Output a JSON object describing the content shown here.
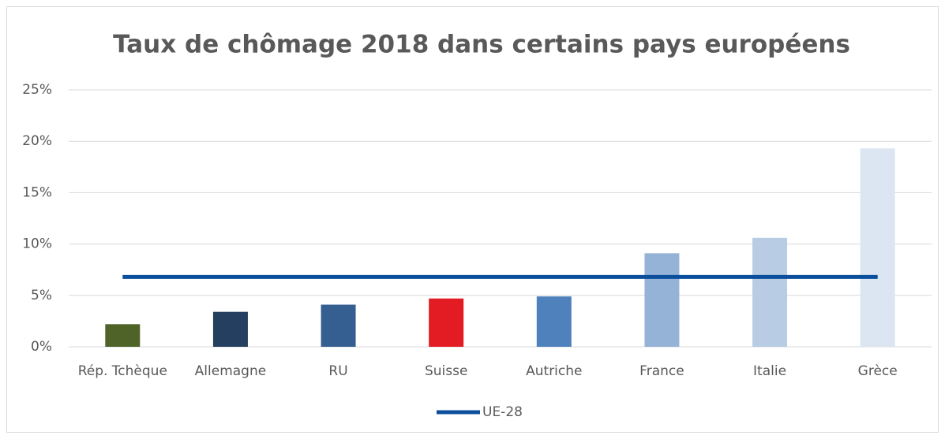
{
  "chart_data": {
    "type": "bar",
    "title": "Taux de chômage 2018 dans certains pays européens",
    "categories": [
      "Rép. Tchèque",
      "Allemagne",
      "RU",
      "Suisse",
      "Autriche",
      "France",
      "Italie",
      "Grèce"
    ],
    "values": [
      2.2,
      3.4,
      4.1,
      4.7,
      4.9,
      9.1,
      10.6,
      19.3
    ],
    "colors": [
      "#4f6228",
      "#243f60",
      "#365f91",
      "#e31b23",
      "#4f81bd",
      "#95b3d7",
      "#b8cce4",
      "#dce6f2"
    ],
    "series": [
      {
        "name": "UE-28",
        "color": "#0b4f9c",
        "type": "line",
        "values": [
          6.8,
          6.8,
          6.8,
          6.8,
          6.8,
          6.8,
          6.8,
          6.8
        ]
      }
    ],
    "ylim": [
      0,
      25
    ],
    "yticks": [
      {
        "value": 0,
        "label": "0%"
      },
      {
        "value": 5,
        "label": "5%"
      },
      {
        "value": 10,
        "label": "10%"
      },
      {
        "value": 15,
        "label": "15%"
      },
      {
        "value": 20,
        "label": "20%"
      },
      {
        "value": 25,
        "label": "25%"
      }
    ],
    "grid": true,
    "legend": "bottom"
  }
}
